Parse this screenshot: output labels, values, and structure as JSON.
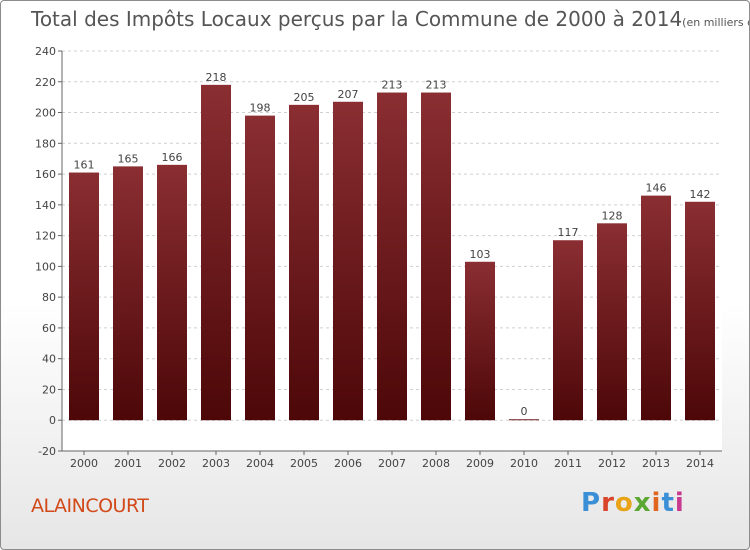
{
  "chart_data": {
    "type": "bar",
    "title": "Total des Impôts Locaux perçus par la Commune de 2000 à 2014",
    "unit_label": "(en milliers d'€)",
    "categories": [
      "2000",
      "2001",
      "2002",
      "2003",
      "2004",
      "2005",
      "2006",
      "2007",
      "2008",
      "2009",
      "2010",
      "2011",
      "2012",
      "2013",
      "2014"
    ],
    "values": [
      161,
      165,
      166,
      218,
      198,
      205,
      207,
      213,
      213,
      103,
      0,
      117,
      128,
      146,
      142
    ],
    "ylim": [
      -20,
      240
    ],
    "yticks": [
      -20,
      0,
      20,
      40,
      60,
      80,
      100,
      120,
      140,
      160,
      180,
      200,
      220,
      240
    ],
    "xlabel": "",
    "ylabel": "",
    "grid": true,
    "bar_color": "#7a2327"
  },
  "footer": {
    "commune": "ALAINCOURT",
    "brand": "Proxiti"
  },
  "colors": {
    "title": "#555555",
    "commune": "#d24a1a",
    "brand_letters": [
      "#3a8fd6",
      "#d9452b",
      "#e8a317",
      "#5aa832",
      "#e0661f",
      "#3a8fd6",
      "#c83b8f"
    ]
  }
}
